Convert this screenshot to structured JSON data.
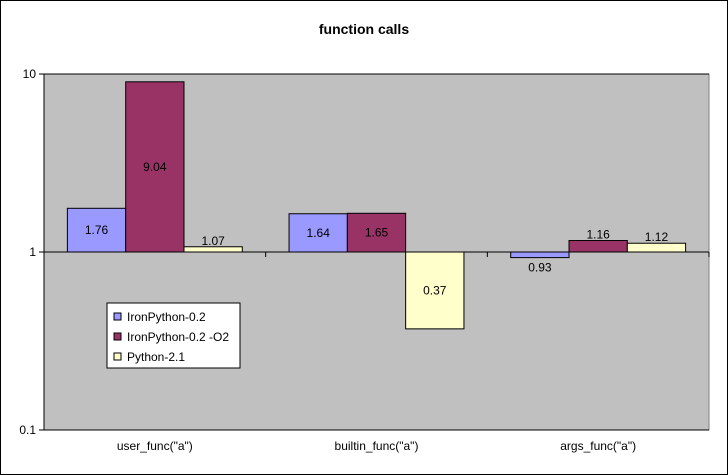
{
  "chart_data": {
    "type": "bar",
    "title": "function calls",
    "xlabel": "",
    "ylabel": "",
    "yscale": "log",
    "ylim": [
      0.1,
      10
    ],
    "baseline": 1,
    "yticks": [
      {
        "value": 10,
        "label": "10"
      },
      {
        "value": 1,
        "label": "1"
      },
      {
        "value": 0.1,
        "label": "0.1"
      }
    ],
    "categories": [
      "user_func(\"a\")",
      "builtin_func(\"a\")",
      "args_func(\"a\")"
    ],
    "series": [
      {
        "name": "IronPython-0.2",
        "color": "#9999ff",
        "values": [
          1.76,
          1.64,
          0.93
        ],
        "labels": [
          "1.76",
          "1.64",
          "0.93"
        ]
      },
      {
        "name": "IronPython-0.2 -O2",
        "color": "#993366",
        "values": [
          9.04,
          1.65,
          1.16
        ],
        "labels": [
          "9.04",
          "1.65",
          "1.16"
        ]
      },
      {
        "name": "Python-2.1",
        "color": "#ffffcc",
        "values": [
          1.07,
          0.37,
          1.12
        ],
        "labels": [
          "1.07",
          "0.37",
          "1.12"
        ]
      }
    ],
    "plot_background": "#c0c0c0",
    "legend_position": "inside-left"
  }
}
